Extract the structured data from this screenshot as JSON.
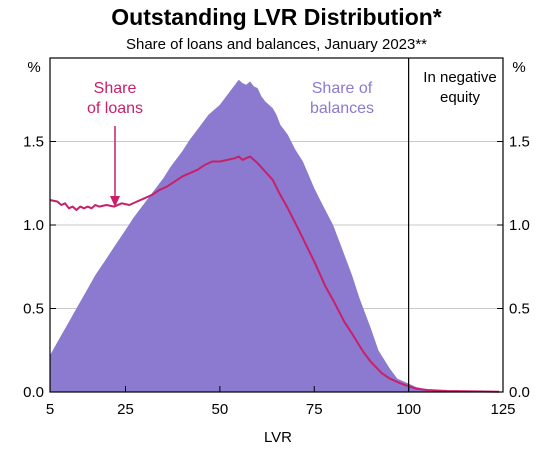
{
  "chart_data": {
    "type": "area",
    "title": "Outstanding LVR Distribution*",
    "subtitle": "Share of loans and balances, January 2023**",
    "xlabel": "LVR",
    "ylabel_left": "%",
    "ylabel_right": "%",
    "xlim": [
      5,
      125
    ],
    "ylim": [
      0,
      2.0
    ],
    "x_ticks": [
      5,
      25,
      50,
      75,
      100,
      125
    ],
    "y_ticks": [
      0.0,
      0.5,
      1.0,
      1.5
    ],
    "y_tick_labels": [
      "0.0",
      "0.5",
      "1.0",
      "1.5"
    ],
    "grid": "horizontal",
    "vertical_marker": {
      "x": 100,
      "label_line1": "In negative",
      "label_line2": "equity"
    },
    "colors": {
      "balances": "#8c7ad0",
      "loans": "#c8206a",
      "grid": "#c8c8c8"
    },
    "series": [
      {
        "name": "Share of balances",
        "style": "area",
        "x": [
          5,
          7,
          10,
          12,
          15,
          17,
          20,
          22,
          25,
          27,
          30,
          32,
          35,
          37,
          40,
          42,
          45,
          47,
          50,
          52,
          54,
          55,
          56,
          57,
          58,
          59,
          60,
          61,
          62,
          63,
          64,
          65,
          66,
          67,
          68,
          70,
          72,
          75,
          77,
          80,
          82,
          85,
          87,
          90,
          92,
          95,
          97,
          100,
          102,
          105,
          107,
          110,
          115,
          120,
          124
        ],
        "values": [
          0.22,
          0.3,
          0.42,
          0.5,
          0.62,
          0.7,
          0.8,
          0.87,
          0.97,
          1.04,
          1.13,
          1.19,
          1.28,
          1.35,
          1.44,
          1.51,
          1.6,
          1.66,
          1.72,
          1.78,
          1.84,
          1.87,
          1.85,
          1.84,
          1.86,
          1.83,
          1.82,
          1.77,
          1.74,
          1.72,
          1.7,
          1.66,
          1.6,
          1.57,
          1.54,
          1.45,
          1.38,
          1.22,
          1.13,
          1.0,
          0.88,
          0.7,
          0.56,
          0.38,
          0.25,
          0.14,
          0.08,
          0.05,
          0.03,
          0.015,
          0.01,
          0.006,
          0.004,
          0.003,
          0.002
        ]
      },
      {
        "name": "Share of loans",
        "style": "line",
        "x": [
          5,
          7,
          8,
          9,
          10,
          11,
          12,
          13,
          14,
          15,
          16,
          17,
          18,
          20,
          22,
          24,
          26,
          28,
          30,
          32,
          34,
          36,
          38,
          40,
          42,
          44,
          46,
          48,
          50,
          52,
          54,
          55,
          56,
          57,
          58,
          60,
          62,
          64,
          66,
          68,
          70,
          72,
          75,
          78,
          80,
          83,
          85,
          88,
          90,
          93,
          95,
          98,
          100,
          102,
          105,
          110,
          115,
          120,
          124
        ],
        "values": [
          1.15,
          1.14,
          1.12,
          1.13,
          1.1,
          1.11,
          1.09,
          1.11,
          1.1,
          1.11,
          1.1,
          1.12,
          1.11,
          1.12,
          1.11,
          1.13,
          1.12,
          1.14,
          1.16,
          1.18,
          1.21,
          1.23,
          1.26,
          1.29,
          1.31,
          1.33,
          1.36,
          1.38,
          1.38,
          1.39,
          1.4,
          1.41,
          1.39,
          1.4,
          1.41,
          1.37,
          1.32,
          1.27,
          1.18,
          1.1,
          1.01,
          0.92,
          0.78,
          0.63,
          0.55,
          0.42,
          0.35,
          0.24,
          0.18,
          0.11,
          0.08,
          0.05,
          0.035,
          0.02,
          0.012,
          0.006,
          0.004,
          0.003,
          0.002
        ]
      }
    ],
    "annotations": [
      {
        "key": "loans",
        "line1": "Share",
        "line2": "of loans",
        "arrow_to_x": 22
      },
      {
        "key": "balances",
        "line1": "Share of",
        "line2": "balances"
      }
    ]
  }
}
